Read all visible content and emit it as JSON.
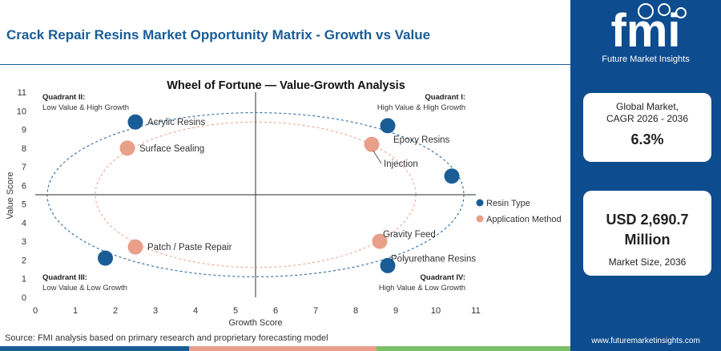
{
  "header": {
    "title": "Crack Repair Resins Market Opportunity Matrix - Growth vs Value"
  },
  "chart_data": {
    "type": "scatter",
    "title": "Wheel of Fortune — Value-Growth Analysis",
    "xlabel": "Growth Score",
    "ylabel": "Value Score",
    "xlim": [
      0,
      11
    ],
    "ylim": [
      0,
      11
    ],
    "xticks": [
      "0",
      "1",
      "2",
      "3",
      "4",
      "5",
      "6",
      "7",
      "8",
      "9",
      "10",
      "11"
    ],
    "yticks": [
      "0",
      "1",
      "2",
      "3",
      "4",
      "5",
      "6",
      "7",
      "8",
      "9",
      "10",
      "11"
    ],
    "divider": {
      "x": 5.5,
      "y": 5.5
    },
    "grid": false,
    "legend_position": "right",
    "quadrants": [
      {
        "id": "q1",
        "title": "Quadrant I:",
        "subtitle": "High Value & High Growth",
        "position": "top-right"
      },
      {
        "id": "q2",
        "title": "Quadrant II:",
        "subtitle": "Low Value & High Growth",
        "position": "top-left"
      },
      {
        "id": "q3",
        "title": "Quadrant III:",
        "subtitle": "Low Value & Low Growth",
        "position": "bottom-left"
      },
      {
        "id": "q4",
        "title": "Quadrant IV:",
        "subtitle": "High Value & Low Growth",
        "position": "bottom-right"
      }
    ],
    "series": [
      {
        "name": "Resin Type",
        "color": "#1a5c96",
        "ring": {
          "cx": 5.5,
          "cy": 5.5,
          "rx": 5.2,
          "ry": 4.4
        },
        "points": [
          {
            "label": "Acrylic Resins",
            "x": 2.5,
            "y": 9.4,
            "label_side": "right"
          },
          {
            "label": "Epoxy Resins",
            "x": 8.8,
            "y": 9.2,
            "label_side": "below-right"
          },
          {
            "label": "",
            "x": 10.4,
            "y": 6.5,
            "label_side": "none"
          },
          {
            "label": "",
            "x": 1.75,
            "y": 2.1,
            "label_side": "none"
          },
          {
            "label": "Polyurethane Resins",
            "x": 8.8,
            "y": 1.7,
            "label_side": "above-right"
          }
        ]
      },
      {
        "name": "Application Method",
        "color": "#e8a08a",
        "ring": {
          "cx": 5.5,
          "cy": 5.5,
          "rx": 4.0,
          "ry": 3.9
        },
        "points": [
          {
            "label": "Surface Sealing",
            "x": 2.3,
            "y": 8.0,
            "label_side": "right"
          },
          {
            "label": "Injection",
            "x": 8.4,
            "y": 8.2,
            "label_side": "below-right"
          },
          {
            "label": "Patch / Paste Repair",
            "x": 2.5,
            "y": 2.7,
            "label_side": "right"
          },
          {
            "label": "Gravity Feed",
            "x": 8.6,
            "y": 3.0,
            "label_side": "above-right"
          }
        ]
      }
    ]
  },
  "source": "Source: FMI analysis based on primary research and proprietary forecasting model",
  "sidebar": {
    "logo_text": "fmi",
    "logo_subtitle": "Future Market Insights",
    "cagr_label_line1": "Global Market,",
    "cagr_label_line2": "CAGR 2026 - 2036",
    "cagr_value": "6.3%",
    "size_value_line1": "USD 2,690.7",
    "size_value_line2": "Million",
    "size_label": "Market Size, 2036",
    "url": "www.futuremarketinsights.com"
  },
  "colors": {
    "brand_blue": "#0d4c8e",
    "title_blue": "#1a5c96",
    "resin": "#1a5c96",
    "application": "#e8a08a",
    "bottom_bar": [
      "#1a5c96",
      "#e8a08a",
      "#7bbf6a",
      "#0d4c8e"
    ]
  }
}
